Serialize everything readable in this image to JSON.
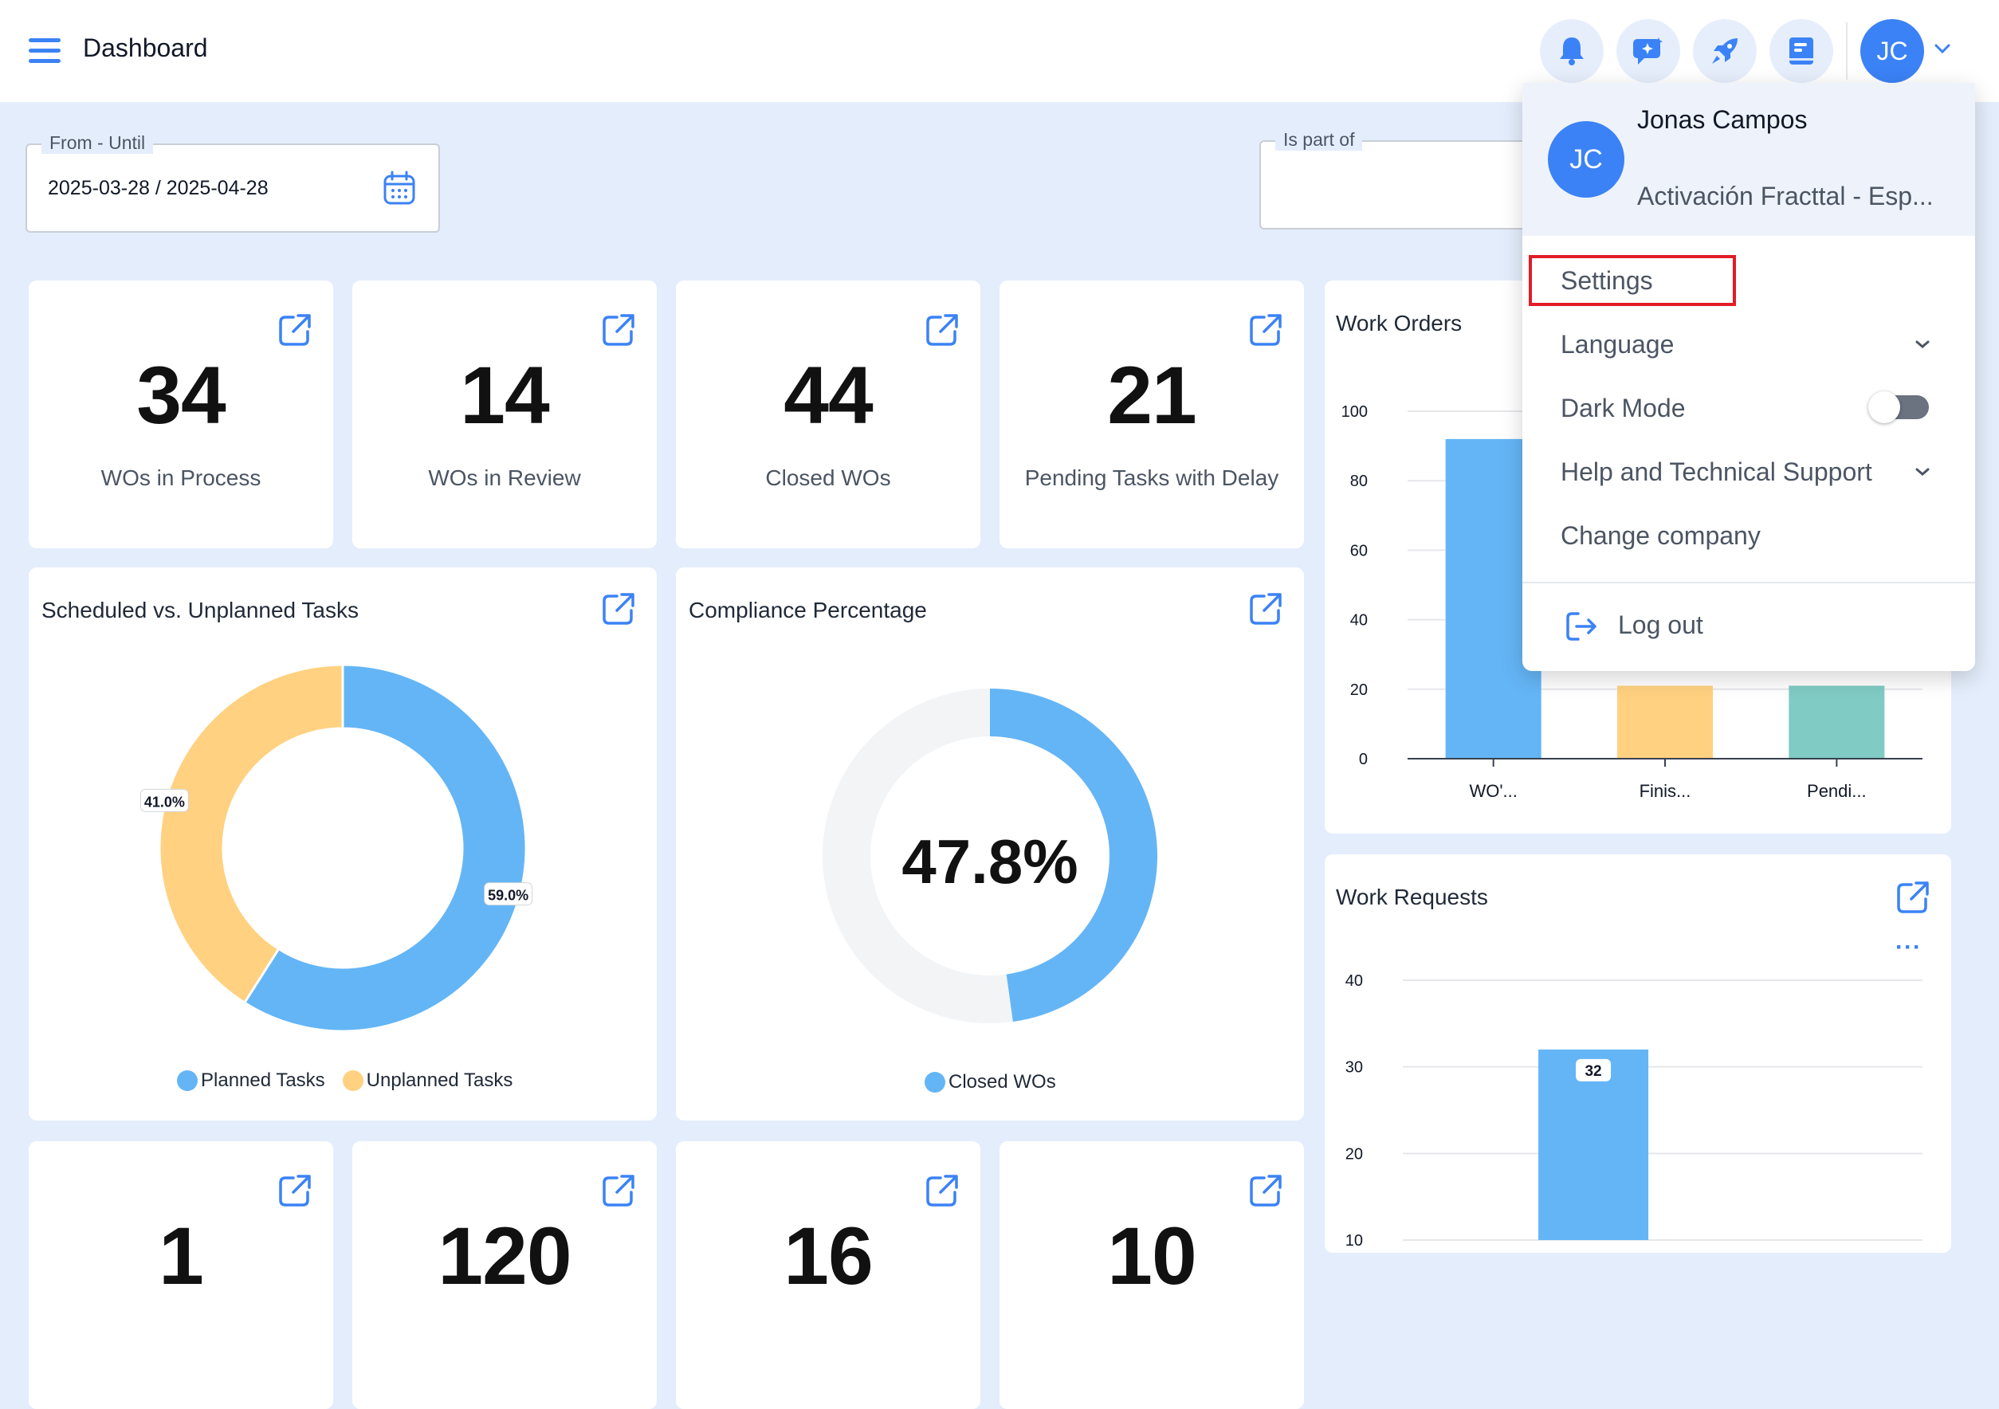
{
  "header": {
    "title": "Dashboard"
  },
  "user": {
    "initials": "JC",
    "name": "Jonas Campos",
    "company": "Activación Fracttal - Esp..."
  },
  "filters": {
    "date_range_label": "From - Until",
    "date_range_value": "2025-03-28 / 2025-04-28",
    "is_part_of_label": "Is part of",
    "is_part_of_value": ""
  },
  "kpis": [
    {
      "value": "34",
      "label": "WOs in Process"
    },
    {
      "value": "14",
      "label": "WOs in Review"
    },
    {
      "value": "44",
      "label": "Closed WOs"
    },
    {
      "value": "21",
      "label": "Pending Tasks with Delay"
    }
  ],
  "bottom_kpis": [
    {
      "value": "1"
    },
    {
      "value": "120"
    },
    {
      "value": "16"
    },
    {
      "value": "10"
    }
  ],
  "scheduled_card": {
    "title": "Scheduled vs. Unplanned Tasks",
    "legend_planned": "Planned Tasks",
    "legend_unplanned": "Unplanned Tasks"
  },
  "compliance_card": {
    "title": "Compliance Percentage",
    "center_value": "47.8%",
    "legend": "Closed WOs"
  },
  "work_orders_card": {
    "title": "Work Orders"
  },
  "work_requests_card": {
    "title": "Work Requests",
    "more_label": "···"
  },
  "menu": {
    "settings": "Settings",
    "language": "Language",
    "dark_mode": "Dark Mode",
    "help": "Help and Technical Support",
    "change_company": "Change company",
    "logout": "Log out"
  },
  "colors": {
    "accent": "#3b82f6",
    "planned": "#64b5f6",
    "unplanned": "#ffd180",
    "pending": "#80cbc4",
    "highlight": "#e11d28"
  },
  "icons": [
    "menu-icon",
    "bell-icon",
    "chat-ai-icon",
    "rocket-icon",
    "book-icon",
    "chevron-down-icon",
    "calendar-icon",
    "external-link-icon",
    "logout-icon",
    "more-icon"
  ],
  "chart_data": [
    {
      "type": "pie",
      "title": "Scheduled vs. Unplanned Tasks",
      "categories": [
        "Planned Tasks",
        "Unplanned Tasks"
      ],
      "values": [
        59.0,
        41.0
      ],
      "labels": [
        "59.0%",
        "41.0%"
      ],
      "style": "donut"
    },
    {
      "type": "pie",
      "title": "Compliance Percentage",
      "categories": [
        "Closed WOs"
      ],
      "values": [
        47.8
      ],
      "center_label": "47.8%",
      "style": "donut"
    },
    {
      "type": "bar",
      "title": "Work Orders",
      "categories": [
        "WO'...",
        "Finis...",
        "Pendi..."
      ],
      "values": [
        92,
        21,
        21
      ],
      "ylim": [
        0,
        100
      ],
      "yticks": [
        0,
        20,
        40,
        60,
        80,
        100
      ]
    },
    {
      "type": "bar",
      "title": "Work Requests",
      "categories": [
        ""
      ],
      "values": [
        32
      ],
      "data_labels": [
        "32"
      ],
      "ylim": [
        10,
        40
      ],
      "yticks": [
        10,
        20,
        30,
        40
      ]
    }
  ]
}
